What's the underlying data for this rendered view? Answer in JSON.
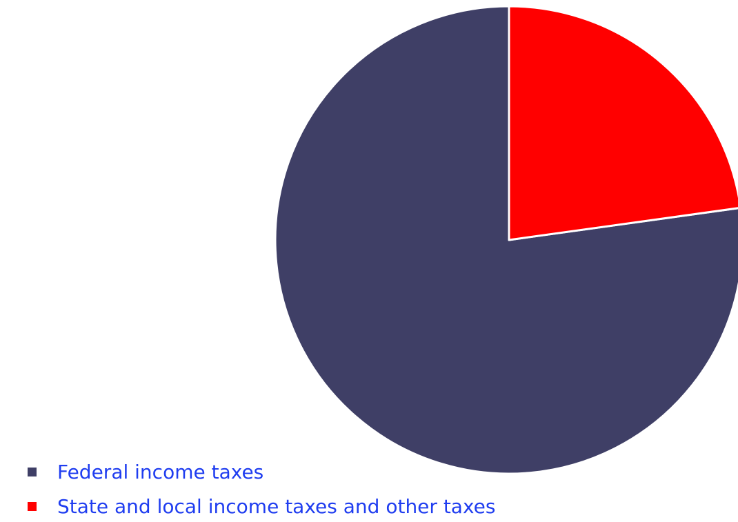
{
  "chart_data": {
    "type": "pie",
    "title": "",
    "start_angle_deg": 0,
    "direction": "counterclockwise",
    "slices": [
      {
        "label": "Federal income taxes",
        "value": 77.2,
        "color": "#3f3f66"
      },
      {
        "label": "State and local income taxes and other taxes",
        "value": 22.8,
        "color": "#ff0000"
      }
    ],
    "legend": {
      "position": "bottom-left",
      "text_color": "#1f3df0",
      "items": [
        {
          "label": "Federal income taxes",
          "color": "#3f3f66"
        },
        {
          "label": "State and local income taxes and other taxes",
          "color": "#ff0000"
        }
      ]
    }
  }
}
